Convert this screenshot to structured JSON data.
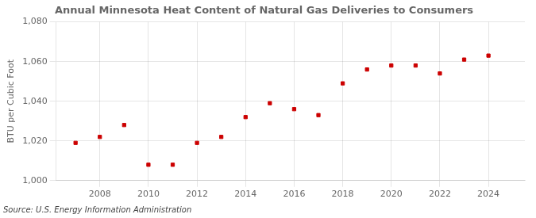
{
  "chart_data": {
    "type": "scatter",
    "title": "Annual Minnesota Heat Content of Natural Gas Deliveries to Consumers",
    "ylabel": "BTU per Cubic Foot",
    "annotations": [
      "Source: U.S. Energy Information Administration"
    ],
    "x": [
      2007,
      2008,
      2009,
      2010,
      2011,
      2012,
      2013,
      2014,
      2015,
      2016,
      2017,
      2018,
      2019,
      2020,
      2021,
      2022,
      2023,
      2024
    ],
    "values": [
      1019,
      1022,
      1028,
      1008,
      1008,
      1019,
      1022,
      1032,
      1039,
      1036,
      1033,
      1049,
      1056,
      1058,
      1058,
      1054,
      1061,
      1063
    ],
    "color": "#cc0000",
    "marker": "square",
    "xlim": [
      2006.2,
      2025.5
    ],
    "xticks": [
      2008,
      2010,
      2012,
      2014,
      2016,
      2018,
      2020,
      2022,
      2024
    ],
    "ylim": [
      1000,
      1080
    ],
    "yticks": [
      {
        "value": 1000,
        "label": "1,000"
      },
      {
        "value": 1020,
        "label": "1,020"
      },
      {
        "value": 1040,
        "label": "1,040"
      },
      {
        "value": 1060,
        "label": "1,060"
      },
      {
        "value": 1080,
        "label": "1,080"
      }
    ],
    "grid": true
  }
}
